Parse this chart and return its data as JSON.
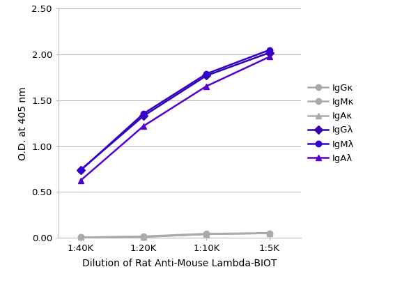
{
  "x_labels": [
    "1:40K",
    "1:20K",
    "1:10K",
    "1:5K"
  ],
  "x_values": [
    1,
    2,
    3,
    4
  ],
  "series": [
    {
      "label": "IgGκ",
      "color": "#aaaaaa",
      "marker": "o",
      "values": [
        0.005,
        0.01,
        0.04,
        0.05
      ]
    },
    {
      "label": "IgMκ",
      "color": "#aaaaaa",
      "marker": "o",
      "values": [
        0.005,
        0.015,
        0.045,
        0.05
      ]
    },
    {
      "label": "IgAκ",
      "color": "#aaaaaa",
      "marker": "^",
      "values": [
        0.005,
        0.01,
        0.04,
        0.05
      ]
    },
    {
      "label": "IgGλ",
      "color": "#3300aa",
      "marker": "D",
      "values": [
        0.74,
        1.33,
        1.77,
        2.02
      ]
    },
    {
      "label": "IgMλ",
      "color": "#3300cc",
      "marker": "o",
      "values": [
        0.735,
        1.355,
        1.79,
        2.05
      ]
    },
    {
      "label": "IgAλ",
      "color": "#5500cc",
      "marker": "^",
      "values": [
        0.625,
        1.22,
        1.655,
        1.975
      ]
    }
  ],
  "xlabel": "Dilution of Rat Anti-Mouse Lambda-BIOT",
  "ylabel": "O.D. at 405 nm",
  "ylim": [
    0.0,
    2.5
  ],
  "yticks": [
    0.0,
    0.5,
    1.0,
    1.5,
    2.0,
    2.5
  ],
  "background_color": "#ffffff",
  "grid_color": "#bbbbbb",
  "linewidth": 1.8,
  "markersize": 6
}
